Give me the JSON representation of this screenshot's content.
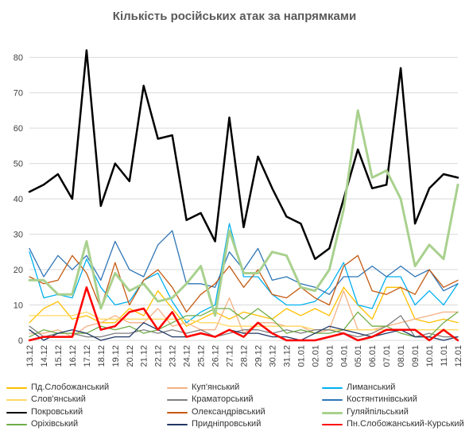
{
  "chart_data": {
    "type": "line",
    "title": "Кількість російських атак за напрямками",
    "xlabel": "",
    "ylabel": "",
    "ylim": [
      0,
      85
    ],
    "yticks": [
      0,
      10,
      20,
      30,
      40,
      50,
      60,
      70,
      80
    ],
    "grid": true,
    "legend_position": "bottom",
    "x": [
      "13.12",
      "14.12",
      "15.12",
      "16.12",
      "17.12",
      "18.12",
      "19.12",
      "20.12",
      "21.12",
      "22.12",
      "23.12",
      "24.12",
      "25.12",
      "26.12",
      "27.12",
      "28.12",
      "29.12",
      "30.12",
      "31.12",
      "01.01",
      "02.01",
      "03.01",
      "04.01",
      "05.01",
      "06.01",
      "07.01",
      "08.01",
      "09.01",
      "10.01",
      "11.01",
      "12.01"
    ],
    "x_tick_labels": [
      "13.12",
      "14.12",
      "15.12",
      "16.12",
      "17.12",
      "18.12",
      "19.12",
      "20.12",
      "21.12",
      "22.12",
      "23.12",
      "24.12",
      "25.12",
      "26.12",
      "27.12",
      "28.12",
      "29.12",
      "30.12",
      "31.12",
      "01.01",
      "02.01",
      "03.01",
      "04.01",
      "05.01",
      "06.01",
      "07.01",
      "08.01",
      "09.01",
      "10.01",
      "11.01",
      "12.01"
    ],
    "series": [
      {
        "name": "Пд.Слобожанський",
        "color": "#ffc000",
        "width": 1.3,
        "values": [
          5,
          9,
          11,
          6,
          7,
          5,
          5,
          9,
          7,
          14,
          9,
          4,
          6,
          8,
          6,
          8,
          7,
          6,
          9,
          7,
          9,
          7,
          15,
          10,
          6,
          15,
          15,
          6,
          5,
          6,
          5
        ]
      },
      {
        "name": "Куп'янський",
        "color": "#f4b183",
        "width": 1.3,
        "values": [
          2,
          2,
          3,
          1,
          4,
          5,
          7,
          5,
          5,
          9,
          4,
          5,
          3,
          3,
          12,
          2,
          5,
          5,
          4,
          4,
          2,
          3,
          14,
          3,
          3,
          4,
          5,
          6,
          7,
          8,
          8
        ]
      },
      {
        "name": "Лиманський",
        "color": "#00b0f0",
        "width": 1.3,
        "values": [
          25,
          12,
          13,
          12,
          23,
          15,
          10,
          11,
          17,
          19,
          11,
          5,
          8,
          10,
          33,
          18,
          18,
          13,
          10,
          10,
          11,
          15,
          22,
          10,
          9,
          18,
          18,
          10,
          14,
          10,
          16
        ]
      },
      {
        "name": "Слов'янський",
        "color": "#ffd966",
        "width": 1.3,
        "values": [
          7,
          7,
          7,
          7,
          8,
          6,
          6,
          6,
          6,
          6,
          6,
          6,
          5,
          5,
          4,
          4,
          4,
          4,
          4,
          4,
          3,
          3,
          3,
          3,
          3,
          3,
          3,
          3,
          3,
          3,
          3
        ]
      },
      {
        "name": "Краматорський",
        "color": "#7f7f7f",
        "width": 1.3,
        "values": [
          4,
          1,
          2,
          2,
          1,
          1,
          2,
          2,
          3,
          2,
          3,
          2,
          3,
          1,
          2,
          3,
          3,
          2,
          3,
          2,
          3,
          3,
          2,
          1,
          2,
          4,
          7,
          1,
          2,
          1,
          1
        ]
      },
      {
        "name": "Костянтинівський",
        "color": "#2e75b6",
        "width": 1.3,
        "values": [
          26,
          18,
          24,
          20,
          24,
          17,
          28,
          20,
          18,
          27,
          31,
          16,
          16,
          15,
          25,
          20,
          26,
          17,
          18,
          16,
          15,
          13,
          18,
          18,
          21,
          18,
          21,
          18,
          20,
          14,
          16
        ]
      },
      {
        "name": "Покровський",
        "color": "#000000",
        "width": 2.5,
        "values": [
          42,
          44,
          47,
          40,
          82,
          38,
          50,
          45,
          72,
          57,
          58,
          34,
          36,
          28,
          63,
          32,
          52,
          43,
          35,
          33,
          23,
          26,
          40,
          54,
          43,
          44,
          77,
          33,
          43,
          47,
          46
        ]
      },
      {
        "name": "Олександрівський",
        "color": "#c55a11",
        "width": 1.3,
        "values": [
          18,
          16,
          17,
          24,
          19,
          9,
          22,
          10,
          17,
          20,
          15,
          8,
          13,
          16,
          21,
          15,
          20,
          13,
          12,
          15,
          12,
          10,
          21,
          24,
          14,
          13,
          15,
          13,
          20,
          15,
          17
        ]
      },
      {
        "name": "Гуляйпільський",
        "color": "#a9d18e",
        "width": 3,
        "values": [
          17,
          17,
          13,
          13,
          28,
          9,
          19,
          14,
          16,
          11,
          12,
          16,
          21,
          7,
          31,
          19,
          19,
          25,
          24,
          15,
          14,
          20,
          37,
          65,
          46,
          48,
          40,
          21,
          27,
          23,
          44
        ]
      },
      {
        "name": "Оріхівський",
        "color": "#70ad47",
        "width": 1.3,
        "values": [
          1,
          3,
          2,
          2,
          2,
          4,
          3,
          4,
          2,
          3,
          5,
          7,
          7,
          9,
          9,
          6,
          9,
          6,
          2,
          3,
          2,
          2,
          3,
          8,
          4,
          4,
          2,
          1,
          1,
          5,
          8
        ]
      },
      {
        "name": "Придніпровський",
        "color": "#203864",
        "width": 1.3,
        "values": [
          3,
          0,
          2,
          3,
          2,
          0,
          1,
          1,
          5,
          3,
          1,
          1,
          2,
          1,
          3,
          2,
          2,
          1,
          1,
          0,
          2,
          4,
          3,
          2,
          1,
          2,
          3,
          1,
          1,
          0,
          1
        ]
      },
      {
        "name": "Пн.Слобожанський-Курський",
        "color": "#ff0000",
        "width": 2.5,
        "values": [
          0,
          1,
          1,
          1,
          15,
          3,
          4,
          8,
          9,
          3,
          8,
          1,
          2,
          1,
          3,
          1,
          5,
          2,
          0,
          0,
          0,
          1,
          2,
          0,
          1,
          3,
          3,
          3,
          0,
          3,
          0
        ]
      }
    ]
  }
}
